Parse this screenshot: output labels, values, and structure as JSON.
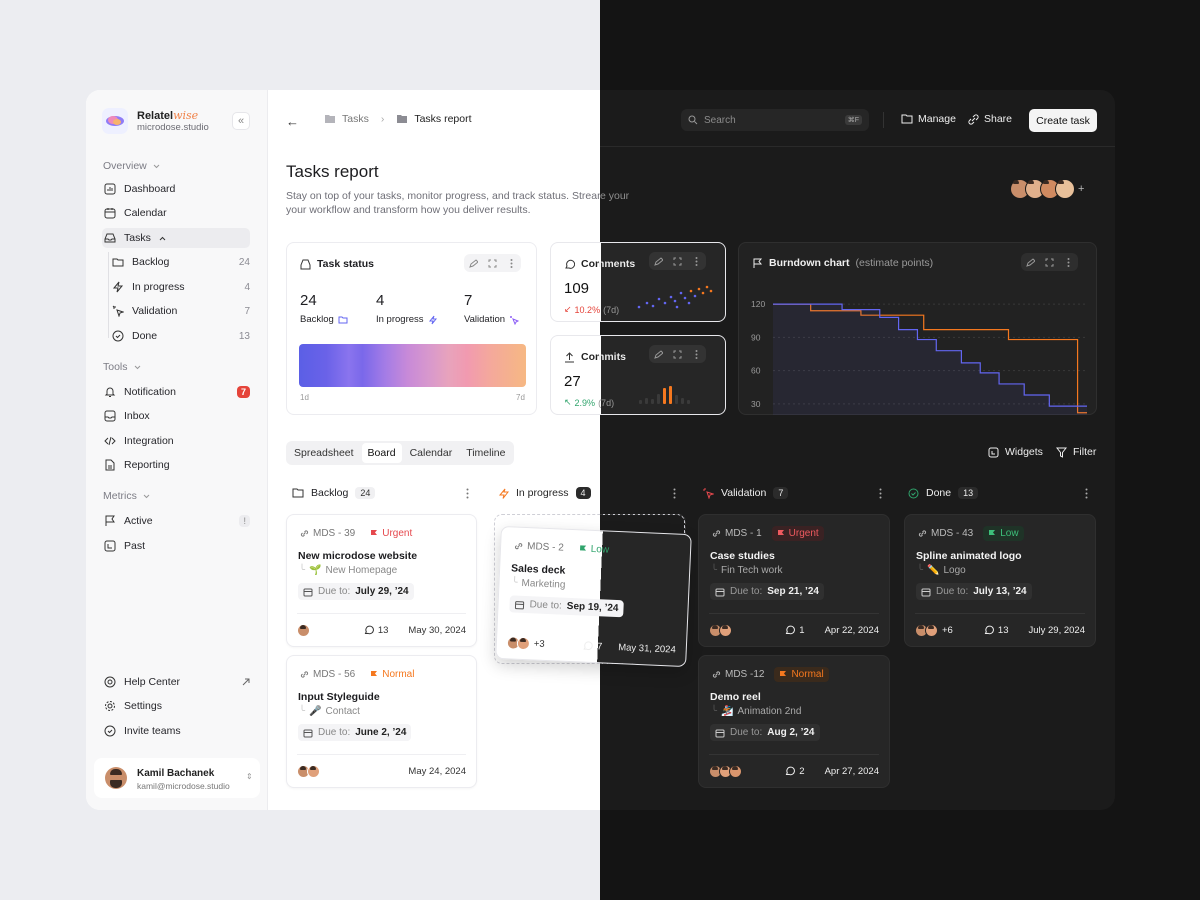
{
  "colors": {
    "accent_orange": "#f5781f",
    "urgent_red": "#e5484d",
    "low_green": "#30a46c",
    "notification_red": "#e5443a"
  },
  "workspace": {
    "name": "Relatel",
    "name_suffix": "wise",
    "domain": "microdose.studio"
  },
  "sidebar": {
    "overview_label": "Overview",
    "items": [
      {
        "label": "Dashboard",
        "icon": "chart-icon"
      },
      {
        "label": "Calendar",
        "icon": "calendar-icon"
      },
      {
        "label": "Tasks",
        "icon": "inbox-tray-icon"
      }
    ],
    "task_subitems": [
      {
        "label": "Backlog",
        "count": "24"
      },
      {
        "label": "In progress",
        "count": "4"
      },
      {
        "label": "Validation",
        "count": "7"
      },
      {
        "label": "Done",
        "count": "13"
      }
    ],
    "tools_label": "Tools",
    "tools": [
      {
        "label": "Notification",
        "badge": "7"
      },
      {
        "label": "Inbox"
      },
      {
        "label": "Integration"
      },
      {
        "label": "Reporting"
      }
    ],
    "metrics_label": "Metrics",
    "metrics": [
      {
        "label": "Active",
        "badge": "!"
      },
      {
        "label": "Past"
      }
    ],
    "footer": [
      {
        "label": "Help Center"
      },
      {
        "label": "Settings"
      },
      {
        "label": "Invite teams"
      }
    ],
    "user": {
      "name": "Kamil Bachanek",
      "email": "kamil@microdose.studio"
    }
  },
  "header": {
    "breadcrumb": [
      "Tasks",
      "Tasks report"
    ],
    "search_placeholder": "Search",
    "search_shortcut": "⌘F",
    "manage_label": "Manage",
    "share_label": "Share",
    "create_label": "Create task"
  },
  "page": {
    "title": "Tasks report",
    "description": "Stay on top of your tasks, monitor progress, and track status. Streamline your workflow and transform how you deliver results."
  },
  "task_status": {
    "title": "Task status",
    "stats": [
      {
        "value": "24",
        "label": "Backlog"
      },
      {
        "value": "4",
        "label": "In progress"
      },
      {
        "value": "7",
        "label": "Validation"
      }
    ],
    "range_start": "1d",
    "range_end": "7d"
  },
  "comments": {
    "title": "Comments",
    "value": "109",
    "change": "10.2%",
    "period": "(7d)"
  },
  "commits": {
    "title": "Commits",
    "value": "27",
    "change": "2.9%",
    "period": "(7d)"
  },
  "burndown": {
    "title": "Burndown chart",
    "subtitle": "(estimate points)",
    "chart_data": {
      "type": "line",
      "yticks": [
        120,
        90,
        60,
        30
      ],
      "ylim": [
        20,
        130
      ],
      "series": [
        {
          "color": "#f5781f",
          "x": [
            0,
            0.12,
            0.12,
            0.28,
            0.28,
            0.48,
            0.48,
            0.75,
            0.75,
            0.97,
            0.97,
            1
          ],
          "y": [
            120,
            120,
            114,
            114,
            110,
            110,
            97,
            97,
            88,
            88,
            22,
            22
          ]
        },
        {
          "color": "#6366f1",
          "x": [
            0,
            0.22,
            0.22,
            0.34,
            0.34,
            0.4,
            0.4,
            0.46,
            0.46,
            0.52,
            0.52,
            0.6,
            0.6,
            0.66,
            0.66,
            0.72,
            0.72,
            0.8,
            0.8,
            0.88,
            0.88,
            1
          ],
          "y": [
            120,
            120,
            115,
            115,
            108,
            108,
            97,
            97,
            88,
            88,
            78,
            78,
            67,
            67,
            58,
            58,
            48,
            48,
            38,
            38,
            28,
            28
          ]
        }
      ]
    }
  },
  "view_tabs": [
    "Spreadsheet",
    "Board",
    "Calendar",
    "Timeline"
  ],
  "board_actions": {
    "widgets": "Widgets",
    "filter": "Filter"
  },
  "columns": [
    {
      "title": "Backlog",
      "count": "24"
    },
    {
      "title": "In progress",
      "count": "4"
    },
    {
      "title": "Validation",
      "count": "7"
    },
    {
      "title": "Done",
      "count": "13"
    }
  ],
  "due_prefix": "Due to:",
  "cards": {
    "backlog1": {
      "id": "MDS - 39",
      "priority": "Urgent",
      "title": "New microdose website",
      "sub": "New Homepage",
      "due": "July 29, ’24",
      "comments": "13",
      "date": "May 30, 2024"
    },
    "backlog2": {
      "id": "MDS - 56",
      "priority": "Normal",
      "title": "Input Styleguide",
      "sub": "Contact",
      "due": "June 2, ’24",
      "date": "May 24, 2024"
    },
    "progress1": {
      "id": "MDS - 2",
      "priority": "Low",
      "title": "Sales deck",
      "sub": "Marketing",
      "due": "Sep 19, ’24",
      "more": "+3",
      "comments": "7",
      "date": "May 31, 2024"
    },
    "validation1": {
      "id": "MDS - 1",
      "priority": "Urgent",
      "title": "Case studies",
      "sub": "Fin Tech work",
      "due": "Sep 21, ’24",
      "comments": "1",
      "date": "Apr 22, 2024"
    },
    "validation2": {
      "id": "MDS -12",
      "priority": "Normal",
      "title": "Demo reel",
      "sub": "Animation 2nd",
      "due": "Aug 2, ’24",
      "comments": "2",
      "date": "Apr 27, 2024"
    },
    "done1": {
      "id": "MDS - 43",
      "priority": "Low",
      "title": "Spline animated logo",
      "sub": "Logo",
      "due": "July 13, ’24",
      "more": "+6",
      "comments": "13",
      "date": "July 29, 2024"
    }
  }
}
